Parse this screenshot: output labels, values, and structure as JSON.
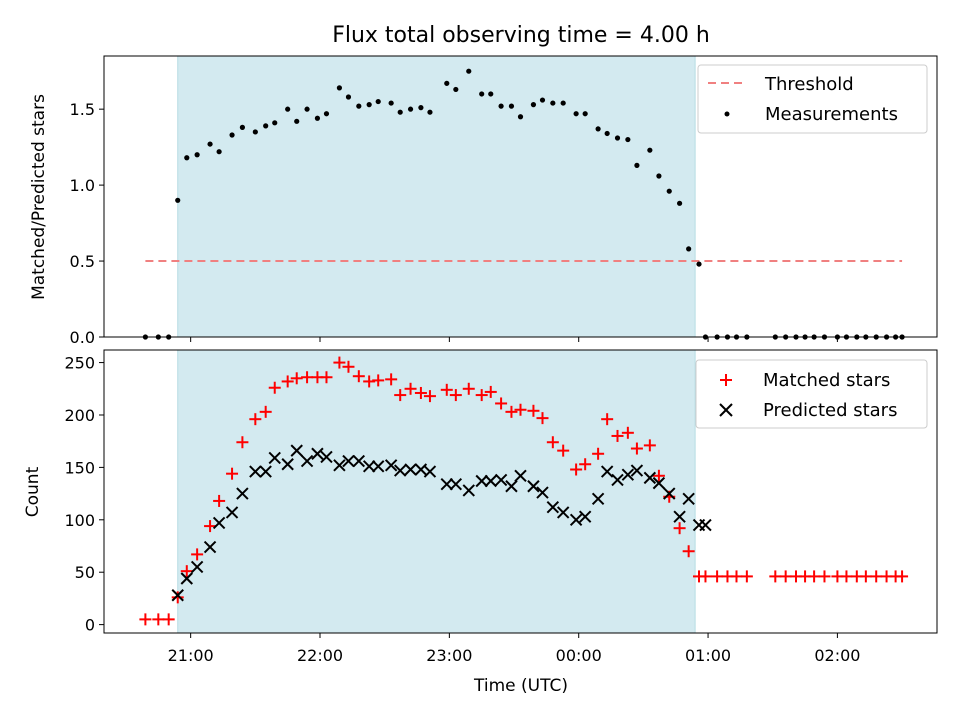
{
  "chart_data": {
    "title": "Flux total observing time = 4.00 h",
    "xlabel": "Time (UTC)",
    "x_tick_labels": [
      "21:00",
      "22:00",
      "23:00",
      "00:00",
      "01:00",
      "02:00"
    ],
    "x_ticks_hours": [
      0,
      1,
      2,
      3,
      4,
      5
    ],
    "xlim_hours": [
      -0.67,
      5.77
    ],
    "observing_window_hours": [
      -0.1,
      3.9
    ],
    "window_color": "#d3eaf0",
    "subplots": [
      {
        "type": "scatter",
        "ylabel": "Matched/Predicted stars",
        "ylim": [
          0,
          1.85
        ],
        "yticks": [
          0.0,
          0.5,
          1.0,
          1.5
        ],
        "ytick_labels": [
          "0.0",
          "0.5",
          "1.0",
          "1.5"
        ],
        "threshold": {
          "name": "Threshold",
          "value": 0.5,
          "x_range": [
            -0.35,
            5.5
          ],
          "color": "#f08080"
        },
        "legend": [
          "Threshold",
          "Measurements"
        ],
        "legend_position": "top-right",
        "series": [
          {
            "name": "Measurements",
            "color": "#000000",
            "x": [
              -0.35,
              -0.25,
              -0.17,
              -0.1,
              -0.03,
              0.05,
              0.15,
              0.22,
              0.32,
              0.4,
              0.5,
              0.58,
              0.65,
              0.75,
              0.82,
              0.9,
              0.98,
              1.05,
              1.15,
              1.22,
              1.3,
              1.38,
              1.45,
              1.55,
              1.62,
              1.7,
              1.78,
              1.85,
              1.98,
              2.05,
              2.15,
              2.25,
              2.32,
              2.4,
              2.48,
              2.55,
              2.65,
              2.72,
              2.8,
              2.88,
              2.98,
              3.05,
              3.15,
              3.22,
              3.3,
              3.38,
              3.45,
              3.55,
              3.62,
              3.7,
              3.78,
              3.85,
              3.93,
              3.98,
              4.07,
              4.15,
              4.22,
              4.3,
              4.52,
              4.6,
              4.68,
              4.75,
              4.82,
              4.9,
              5.0,
              5.07,
              5.15,
              5.22,
              5.3,
              5.38,
              5.45,
              5.5
            ],
            "y": [
              0.0,
              0.0,
              0.0,
              0.9,
              1.18,
              1.2,
              1.27,
              1.22,
              1.33,
              1.38,
              1.35,
              1.39,
              1.41,
              1.5,
              1.42,
              1.5,
              1.44,
              1.47,
              1.64,
              1.58,
              1.52,
              1.53,
              1.55,
              1.54,
              1.48,
              1.5,
              1.51,
              1.48,
              1.67,
              1.63,
              1.75,
              1.6,
              1.6,
              1.52,
              1.52,
              1.45,
              1.53,
              1.56,
              1.54,
              1.54,
              1.47,
              1.47,
              1.37,
              1.34,
              1.31,
              1.3,
              1.13,
              1.23,
              1.06,
              0.96,
              0.88,
              0.58,
              0.48,
              0.0,
              0.0,
              0.0,
              0.0,
              0.0,
              0.0,
              0.0,
              0.0,
              0.0,
              0.0,
              0.0,
              0.0,
              0.0,
              0.0,
              0.0,
              0.0,
              0.0,
              0.0,
              0.0
            ]
          }
        ]
      },
      {
        "type": "scatter",
        "ylabel": "Count",
        "ylim": [
          -8,
          262
        ],
        "yticks": [
          0,
          50,
          100,
          150,
          200,
          250
        ],
        "ytick_labels": [
          "0",
          "50",
          "100",
          "150",
          "200",
          "250"
        ],
        "legend": [
          "Matched stars",
          "Predicted stars"
        ],
        "legend_position": "top-right",
        "series": [
          {
            "name": "Matched stars",
            "marker": "plus",
            "color": "#ff0000",
            "x": [
              -0.35,
              -0.25,
              -0.17,
              -0.1,
              -0.03,
              0.05,
              0.15,
              0.22,
              0.32,
              0.4,
              0.5,
              0.58,
              0.65,
              0.75,
              0.82,
              0.9,
              0.98,
              1.05,
              1.15,
              1.22,
              1.3,
              1.38,
              1.45,
              1.55,
              1.62,
              1.7,
              1.78,
              1.85,
              1.98,
              2.05,
              2.15,
              2.25,
              2.32,
              2.4,
              2.48,
              2.55,
              2.65,
              2.72,
              2.8,
              2.88,
              2.98,
              3.05,
              3.15,
              3.22,
              3.3,
              3.38,
              3.45,
              3.55,
              3.62,
              3.7,
              3.78,
              3.85,
              3.93,
              3.98,
              4.07,
              4.15,
              4.22,
              4.3,
              4.52,
              4.6,
              4.68,
              4.75,
              4.82,
              4.9,
              5.0,
              5.07,
              5.15,
              5.22,
              5.3,
              5.38,
              5.45,
              5.5
            ],
            "y": [
              5,
              5,
              5,
              26,
              51,
              67,
              94,
              118,
              144,
              174,
              196,
              203,
              226,
              232,
              235,
              236,
              236,
              236,
              250,
              246,
              237,
              232,
              233,
              234,
              219,
              225,
              221,
              218,
              224,
              219,
              225,
              219,
              222,
              211,
              203,
              205,
              204,
              197,
              174,
              166,
              148,
              153,
              163,
              196,
              180,
              183,
              168,
              171,
              142,
              122,
              92,
              70,
              46,
              46,
              46,
              46,
              46,
              46,
              46,
              46,
              46,
              46,
              46,
              46,
              46,
              46,
              46,
              46,
              46,
              46,
              46,
              46
            ]
          },
          {
            "name": "Predicted stars",
            "marker": "x",
            "color": "#000000",
            "x": [
              -0.1,
              -0.03,
              0.05,
              0.15,
              0.22,
              0.32,
              0.4,
              0.5,
              0.58,
              0.65,
              0.75,
              0.82,
              0.9,
              0.98,
              1.05,
              1.15,
              1.22,
              1.3,
              1.38,
              1.45,
              1.55,
              1.62,
              1.7,
              1.78,
              1.85,
              1.98,
              2.05,
              2.15,
              2.25,
              2.32,
              2.4,
              2.48,
              2.55,
              2.65,
              2.72,
              2.8,
              2.88,
              2.98,
              3.05,
              3.15,
              3.22,
              3.3,
              3.38,
              3.45,
              3.55,
              3.62,
              3.7,
              3.78,
              3.85,
              3.93,
              3.98
            ],
            "y": [
              28,
              44,
              55,
              74,
              97,
              107,
              125,
              146,
              146,
              159,
              153,
              166,
              156,
              163,
              160,
              152,
              156,
              156,
              151,
              151,
              152,
              147,
              148,
              148,
              146,
              134,
              134,
              128,
              137,
              137,
              138,
              132,
              142,
              132,
              126,
              112,
              107,
              100,
              103,
              120,
              146,
              138,
              143,
              147,
              140,
              135,
              125,
              103,
              120,
              95,
              95
            ]
          }
        ]
      }
    ]
  }
}
